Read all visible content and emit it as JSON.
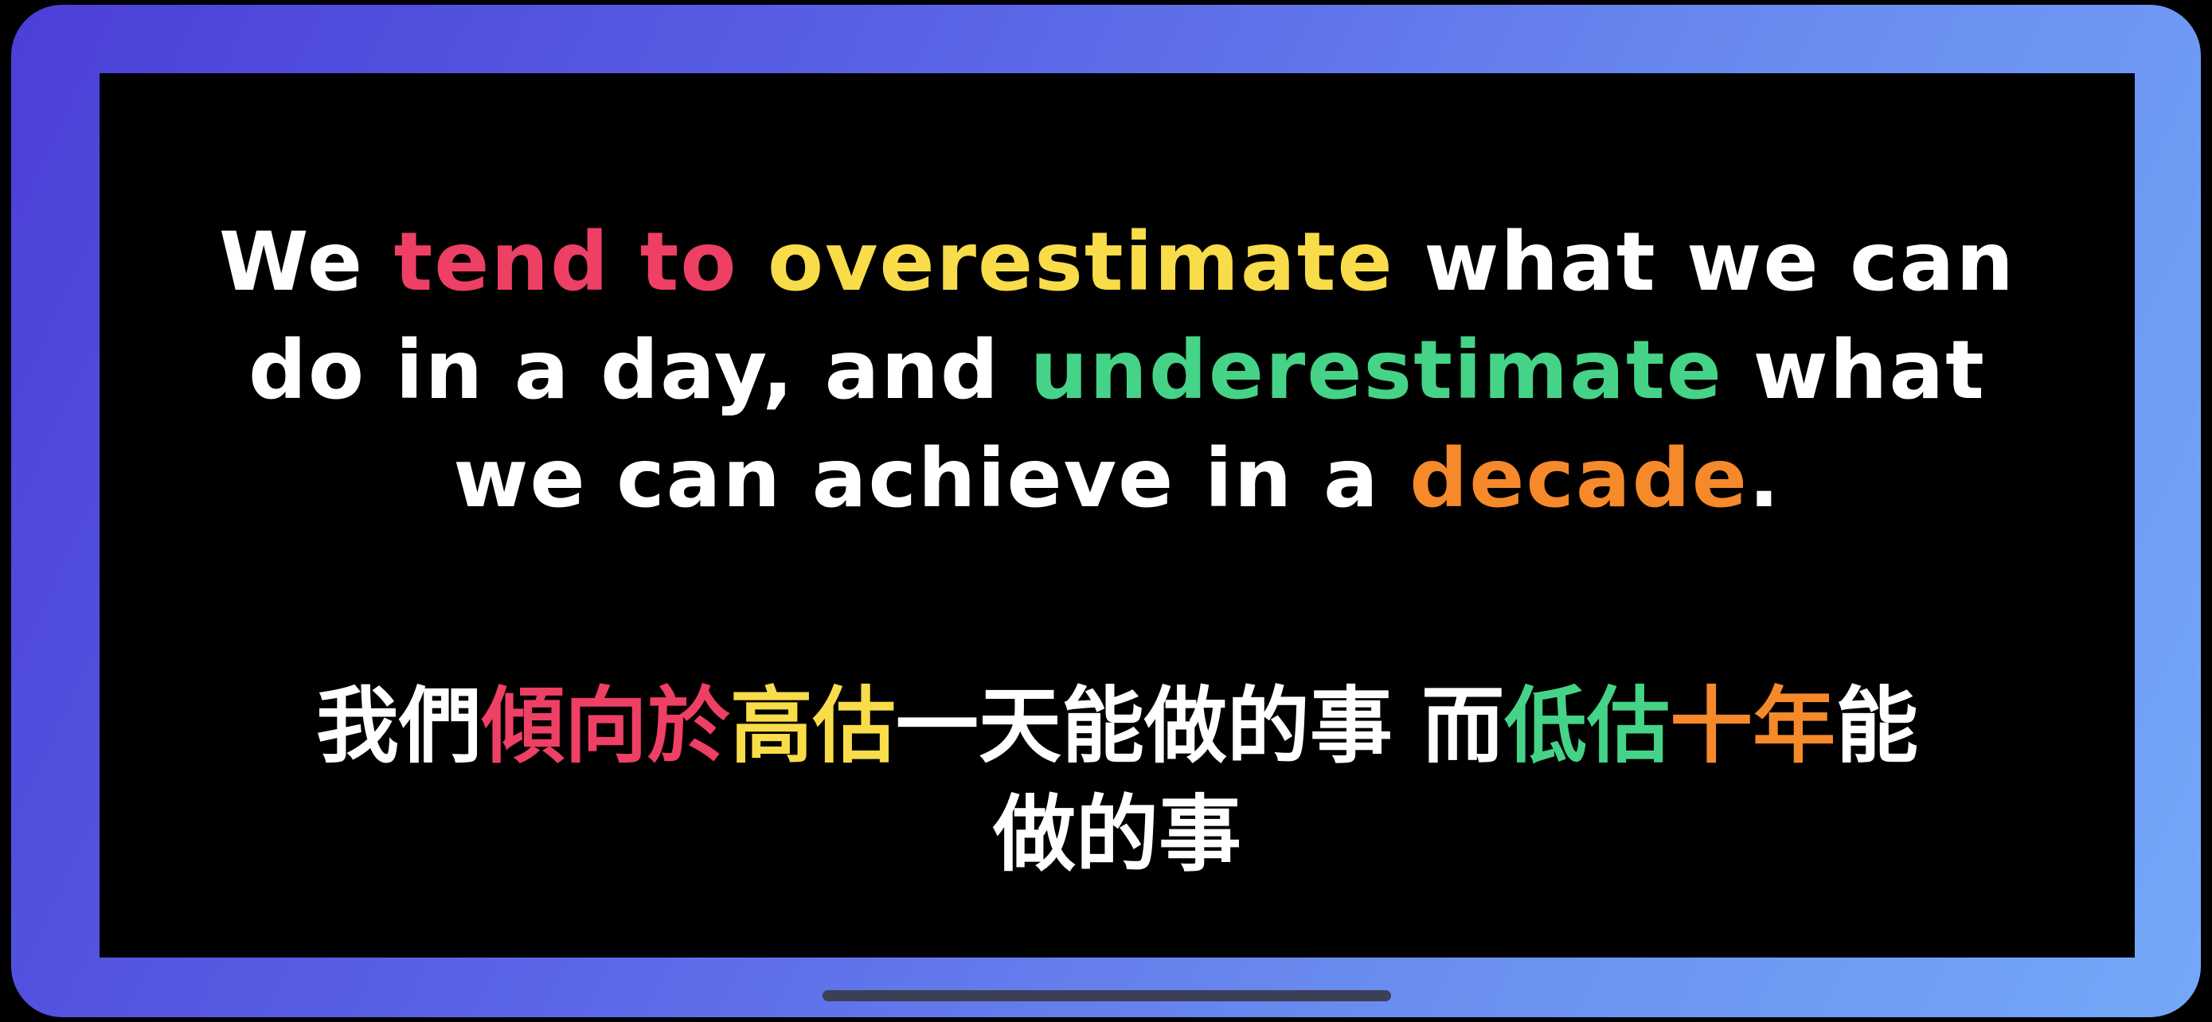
{
  "colors": {
    "frame_start": "#4b3fd8",
    "frame_end": "#74a8f8",
    "screen_bg": "#000000",
    "text_default": "#ffffff",
    "red": "#ee3f64",
    "yellow": "#f8dc4a",
    "green": "#45d388",
    "orange": "#f6892a"
  },
  "quote_en": {
    "line1": {
      "a": "We ",
      "tend_to": "tend to",
      "b": " ",
      "overestimate": "overestimate",
      "c": " what we can"
    },
    "line2": {
      "a": "do in a day, and ",
      "underestimate": "underestimate",
      "b": " what"
    },
    "line3": {
      "a": "we can achieve in a ",
      "decade": "decade",
      "b": "."
    }
  },
  "quote_zh": {
    "line1": {
      "a": "我們",
      "tend_to": "傾向於",
      "overestimate": "高估",
      "b": "一天能做的事 而",
      "underestimate": "低估",
      "decade": "十年",
      "c": "能"
    },
    "line2": {
      "a": "做的事"
    }
  }
}
